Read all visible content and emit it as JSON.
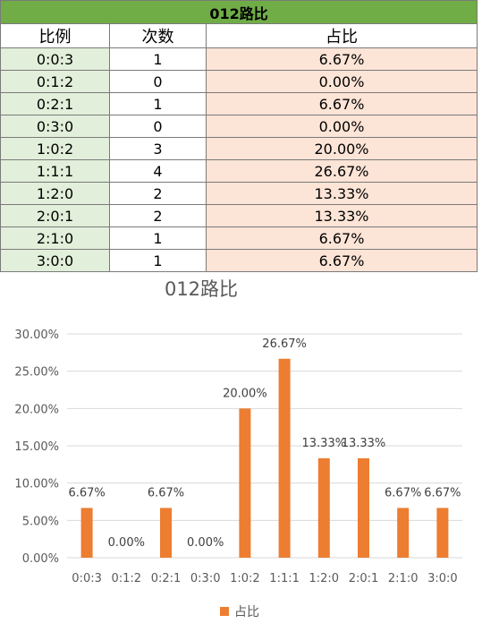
{
  "table": {
    "title": "012路比",
    "headers": [
      "比例",
      "次数",
      "占比"
    ],
    "rows": [
      [
        "0:0:3",
        "1",
        "6.67%"
      ],
      [
        "0:1:2",
        "0",
        "0.00%"
      ],
      [
        "0:2:1",
        "1",
        "6.67%"
      ],
      [
        "0:3:0",
        "0",
        "0.00%"
      ],
      [
        "1:0:2",
        "3",
        "20.00%"
      ],
      [
        "1:1:1",
        "4",
        "26.67%"
      ],
      [
        "1:2:0",
        "2",
        "13.33%"
      ],
      [
        "2:0:1",
        "2",
        "13.33%"
      ],
      [
        "2:1:0",
        "1",
        "6.67%"
      ],
      [
        "3:0:0",
        "1",
        "6.67%"
      ]
    ],
    "colors": {
      "title": "#70ad47",
      "col1": "#e2efda",
      "col3": "#fce4d6"
    }
  },
  "chart_data": {
    "type": "bar",
    "title": "012路比",
    "categories": [
      "0:0:3",
      "0:1:2",
      "0:2:1",
      "0:3:0",
      "1:0:2",
      "1:1:1",
      "1:2:0",
      "2:0:1",
      "2:1:0",
      "3:0:0"
    ],
    "series": [
      {
        "name": "占比",
        "values": [
          6.67,
          0.0,
          6.67,
          0.0,
          20.0,
          26.67,
          13.33,
          13.33,
          6.67,
          6.67
        ]
      }
    ],
    "data_labels": [
      "6.67%",
      "0.00%",
      "6.67%",
      "0.00%",
      "20.00%",
      "26.67%",
      "13.33%",
      "13.33%",
      "6.67%",
      "6.67%"
    ],
    "yticks": [
      "0.00%",
      "5.00%",
      "10.00%",
      "15.00%",
      "20.00%",
      "25.00%",
      "30.00%"
    ],
    "ylim": [
      0,
      30
    ],
    "grid": true,
    "legend": "bottom",
    "bar_color": "#ed7d31"
  }
}
